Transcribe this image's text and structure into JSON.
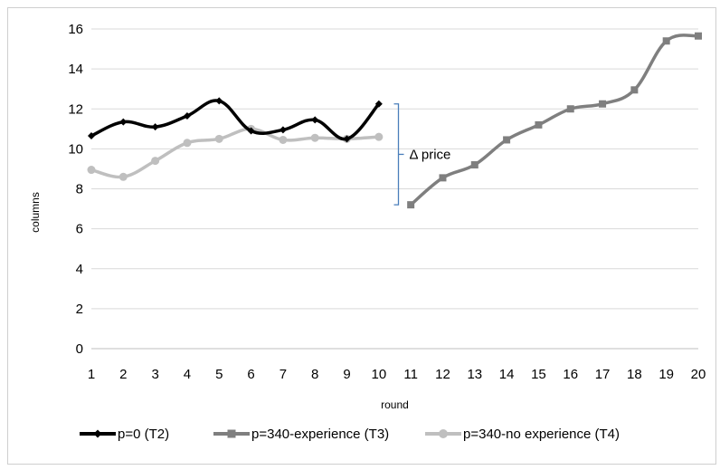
{
  "chart_data": {
    "type": "line",
    "title": "",
    "xlabel": "round",
    "ylabel": "columns",
    "x": [
      1,
      2,
      3,
      4,
      5,
      6,
      7,
      8,
      9,
      10,
      11,
      12,
      13,
      14,
      15,
      16,
      17,
      18,
      19,
      20
    ],
    "xlim": [
      1,
      20
    ],
    "ylim": [
      0,
      16
    ],
    "yticks": [
      0,
      2,
      4,
      6,
      8,
      10,
      12,
      14,
      16
    ],
    "grid": "horizontal",
    "legend_position": "bottom",
    "series": [
      {
        "name": "p=0 (T2)",
        "color": "#000000",
        "marker": "diamond",
        "x": [
          1,
          2,
          3,
          4,
          5,
          6,
          7,
          8,
          9,
          10
        ],
        "values": [
          10.65,
          11.35,
          11.1,
          11.65,
          12.4,
          10.9,
          10.95,
          11.45,
          10.5,
          12.25
        ]
      },
      {
        "name": "p=340-experience (T3)",
        "color": "#7f7f7f",
        "marker": "square",
        "x": [
          11,
          12,
          13,
          14,
          15,
          16,
          17,
          18,
          19,
          20
        ],
        "values": [
          7.2,
          8.55,
          9.2,
          10.45,
          11.2,
          12.0,
          12.25,
          12.95,
          15.4,
          15.65
        ]
      },
      {
        "name": "p=340-no experience (T4)",
        "color": "#bfbfbf",
        "marker": "circle",
        "x": [
          1,
          2,
          3,
          4,
          5,
          6,
          7,
          8,
          9,
          10
        ],
        "values": [
          8.95,
          8.6,
          9.4,
          10.3,
          10.5,
          11.0,
          10.45,
          10.55,
          10.5,
          10.6
        ]
      }
    ],
    "annotations": [
      {
        "text": "Δ price",
        "type": "bracket",
        "x": 10.5,
        "y_from": 7.2,
        "y_to": 12.25,
        "color": "#4a7ebb"
      }
    ]
  }
}
